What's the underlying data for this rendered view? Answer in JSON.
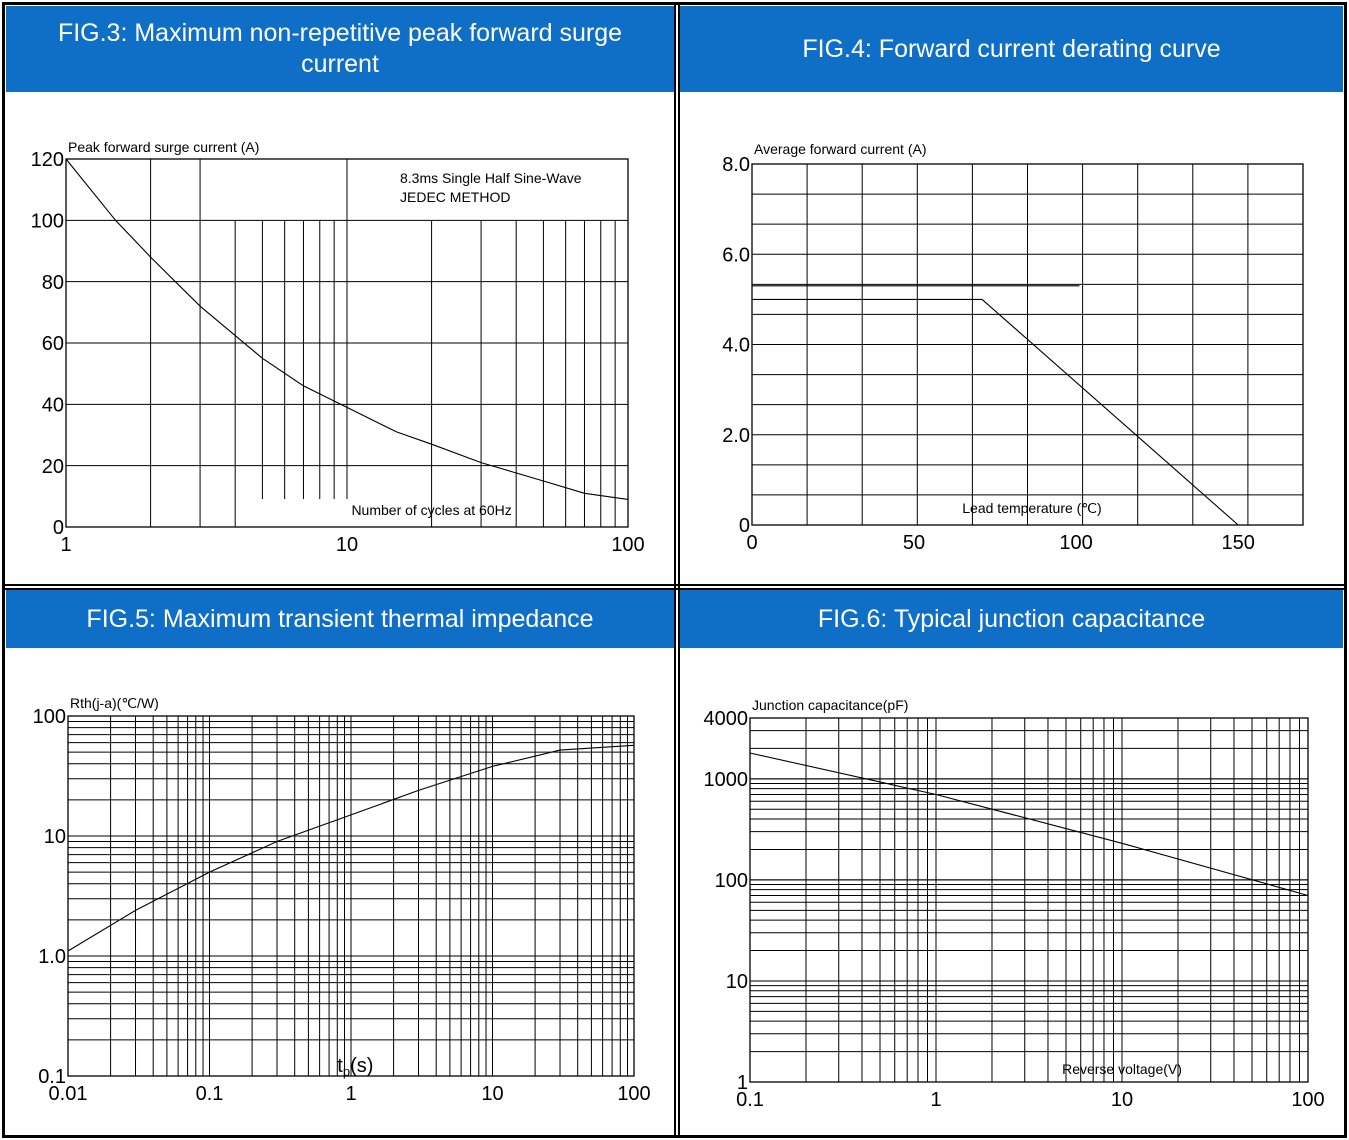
{
  "colors": {
    "header_bg": "#0f6fc6",
    "header_text": "#ffffff",
    "grid": "#000000",
    "curve": "#000000"
  },
  "panels": {
    "fig3": {
      "title": "FIG.3: Maximum non-repetitive peak forward surge current",
      "chart_data": {
        "type": "line",
        "ylabel": "Peak forward surge current (A)",
        "xlabel": "Number of cycles at 60Hz",
        "annotation": [
          "8.3ms Single Half Sine-Wave",
          "JEDEC METHOD"
        ],
        "xscale": "log",
        "yscale": "linear",
        "xlim": [
          1,
          100
        ],
        "ylim": [
          0,
          120
        ],
        "xticks": [
          1,
          10,
          100
        ],
        "xtick_labels": [
          "1",
          "10",
          "100"
        ],
        "yticks": [
          0,
          20,
          40,
          60,
          80,
          100,
          120
        ],
        "ytick_labels": [
          "0",
          "20",
          "40",
          "60",
          "80",
          "100",
          "120"
        ],
        "grid": true,
        "series": [
          {
            "x": [
              1,
              1.5,
              2,
              3,
              5,
              7,
              10,
              15,
              20,
              30,
              50,
              70,
              100
            ],
            "y": [
              120,
              100,
              88,
              72,
              55,
              46,
              39,
              31,
              27,
              21,
              15,
              11,
              9
            ]
          }
        ]
      }
    },
    "fig4": {
      "title": "FIG.4: Forward current derating curve",
      "chart_data": {
        "type": "line",
        "ylabel": "Average forward current (A)",
        "xlabel": "Lead temperature (℃)",
        "xscale": "linear",
        "yscale": "linear",
        "xlim": [
          0,
          170
        ],
        "ylim": [
          0,
          8
        ],
        "xticks": [
          0,
          50,
          100,
          150
        ],
        "xtick_labels": [
          "0",
          "50",
          "100",
          "150"
        ],
        "yticks": [
          0,
          2,
          4,
          6,
          8
        ],
        "ytick_labels": [
          "0",
          "2.0",
          "4.0",
          "6.0",
          "8.0"
        ],
        "grid": true,
        "series": [
          {
            "x": [
              0,
              71,
              150
            ],
            "y": [
              5.0,
              5.0,
              0
            ]
          },
          {
            "x": [
              0,
              101
            ],
            "y": [
              5.3,
              5.3
            ]
          }
        ]
      }
    },
    "fig5": {
      "title": "FIG.5: Maximum transient thermal impedance",
      "chart_data": {
        "type": "line",
        "ylabel": "Rth(j-a)(℃/W)",
        "xlabel_main": "t",
        "xlabel_sub": "p",
        "xlabel_unit": "(s)",
        "xscale": "log",
        "yscale": "log",
        "xlim": [
          0.01,
          100
        ],
        "ylim": [
          0.1,
          100
        ],
        "xticks": [
          0.01,
          0.1,
          1,
          10,
          100
        ],
        "xtick_labels": [
          "0.01",
          "0.1",
          "1",
          "10",
          "100"
        ],
        "yticks": [
          0.1,
          1,
          10,
          100
        ],
        "ytick_labels": [
          "0.1",
          "1.0",
          "10",
          "100"
        ],
        "grid": true,
        "series": [
          {
            "x": [
              0.01,
              0.03,
              0.1,
              0.3,
              1,
              3,
              10,
              30,
              100
            ],
            "y": [
              1.1,
              2.4,
              5.0,
              9.0,
              15,
              24,
              38,
              52,
              57
            ]
          }
        ]
      }
    },
    "fig6": {
      "title": "FIG.6: Typical junction capacitance",
      "chart_data": {
        "type": "line",
        "ylabel": "Junction capacitance(pF)",
        "xlabel": "Reverse voltage(V)",
        "xscale": "log",
        "yscale": "log",
        "xlim": [
          0.1,
          100
        ],
        "ylim": [
          1,
          4000
        ],
        "xticks": [
          0.1,
          1,
          10,
          100
        ],
        "xtick_labels": [
          "0.1",
          "1",
          "10",
          "100"
        ],
        "yticks": [
          1,
          10,
          100,
          1000,
          4000
        ],
        "ytick_labels": [
          "1",
          "10",
          "100",
          "1000",
          "4000"
        ],
        "grid": true,
        "series": [
          {
            "x": [
              0.1,
              1,
              10,
              100
            ],
            "y": [
              1800,
              700,
              230,
              70
            ]
          }
        ]
      }
    }
  }
}
